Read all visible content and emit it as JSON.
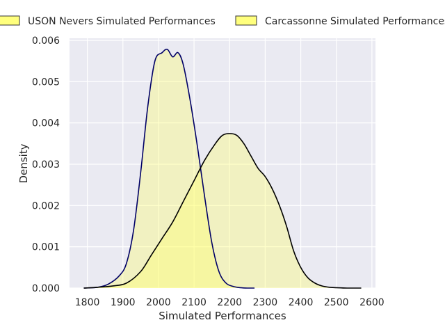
{
  "chart_data": {
    "type": "area",
    "xlabel": "Simulated Performances",
    "ylabel": "Density",
    "xlim": [
      1750,
      2610
    ],
    "ylim": [
      0,
      0.00605
    ],
    "xticks": [
      1800,
      1900,
      2000,
      2100,
      2200,
      2300,
      2400,
      2500,
      2600
    ],
    "yticks": [
      0.0,
      0.001,
      0.002,
      0.003,
      0.004,
      0.005,
      0.006
    ],
    "ytick_labels": [
      "0.000",
      "0.001",
      "0.002",
      "0.003",
      "0.004",
      "0.005",
      "0.006"
    ],
    "grid": true,
    "legend_position": "top",
    "series": [
      {
        "name": "USON Nevers Simulated Performances",
        "color": "#000066",
        "fill": "#ffff66",
        "x": [
          1790,
          1830,
          1860,
          1890,
          1910,
          1930,
          1950,
          1970,
          1990,
          2010,
          2025,
          2040,
          2055,
          2070,
          2090,
          2110,
          2130,
          2150,
          2170,
          2190,
          2210,
          2230,
          2250,
          2270
        ],
        "y": [
          0.0,
          2e-05,
          0.0001,
          0.0003,
          0.0006,
          0.0014,
          0.0028,
          0.0044,
          0.0055,
          0.0057,
          0.00578,
          0.0056,
          0.0057,
          0.0054,
          0.0045,
          0.0034,
          0.0022,
          0.0011,
          0.0004,
          0.00012,
          4e-05,
          1e-05,
          0.0,
          0.0
        ]
      },
      {
        "name": "Carcassonne Simulated Performances",
        "color": "#000000",
        "fill": "#ffff66",
        "x": [
          1790,
          1830,
          1870,
          1910,
          1950,
          1980,
          2010,
          2040,
          2070,
          2100,
          2130,
          2160,
          2180,
          2200,
          2220,
          2240,
          2260,
          2280,
          2300,
          2320,
          2340,
          2360,
          2380,
          2400,
          2420,
          2440,
          2460,
          2480,
          2500,
          2530,
          2570
        ],
        "y": [
          0.0,
          2e-05,
          5e-05,
          0.00012,
          0.0004,
          0.0008,
          0.0012,
          0.0016,
          0.0021,
          0.0026,
          0.0031,
          0.0035,
          0.0037,
          0.00374,
          0.0037,
          0.0035,
          0.0032,
          0.0029,
          0.0027,
          0.0024,
          0.002,
          0.0015,
          0.0009,
          0.0005,
          0.00025,
          0.00012,
          5e-05,
          2e-05,
          1e-05,
          0.0,
          0.0
        ]
      }
    ]
  }
}
